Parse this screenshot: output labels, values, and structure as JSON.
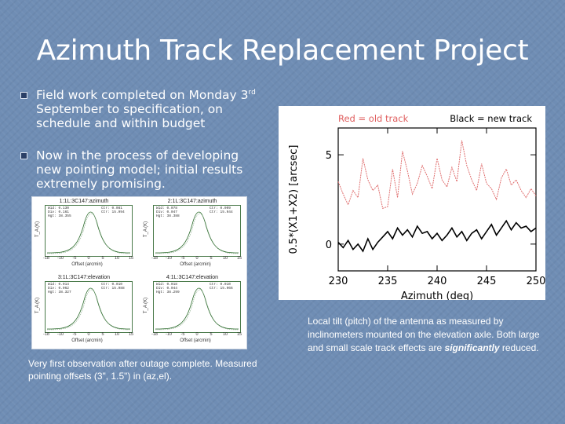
{
  "slide": {
    "title": "Azimuth Track Replacement Project"
  },
  "bullets": [
    {
      "pre": "Field work completed on Monday 3",
      "sup": "rd",
      "post": " September to specification, on schedule and within budget"
    },
    {
      "pre": "Now in the process of developing new pointing model; initial results extremely promising.",
      "sup": "",
      "post": ""
    }
  ],
  "panels": [
    {
      "header": "1:1L:3C147:azimuth",
      "stat_left": "Wid: 0.130\nDiv: 0.161\nHgt: 38.355",
      "stat_right": "Ctr: 0.081\nCtr: 15.994",
      "xlabel": "Offset (arcmin)",
      "ylabel": "T_A (K)"
    },
    {
      "header": "2:1L:3C147:azimuth",
      "stat_left": "Wid: 0.078\nDiv: 0.047\nHgt: 38.388",
      "stat_right": "Ctr: 0.009\nCtr: 15.944",
      "xlabel": "Offset (arcmin)",
      "ylabel": "T_A (K)"
    },
    {
      "header": "3:1L:3C147:elevation",
      "stat_left": "Wid: 0.014\nDiv: 0.062\nHgt: 38.327",
      "stat_right": "Ctr: 0.010\nCtr: 15.988",
      "xlabel": "Offset (arcmin)",
      "ylabel": "T_A (K)"
    },
    {
      "header": "4:1L:3C147:elevation",
      "stat_left": "Wid: 0.018\nDiv: 0.044\nHgt: 38.299",
      "stat_right": "Ctr: 0.010\nCtr: 15.966",
      "xlabel": "Offset (arcmin)",
      "ylabel": "T_A (K)"
    }
  ],
  "panel_ticks": [
    "-18",
    "-10",
    "-5",
    "0",
    "5",
    "10",
    "15"
  ],
  "caption_left": "Very first observation after outage complete. Measured pointing offsets (3\", 1.5\") in (az,el).",
  "caption_right": {
    "pre": "Local tilt (pitch) of the antenna as measured by inclinometers mounted on the elevation axle. Both large and small scale track effects are ",
    "emph": "significantly",
    "post": " reduced."
  },
  "chart_data": {
    "type": "line",
    "legend": {
      "red": "Red = old track",
      "black": "Black = new track"
    },
    "xlabel": "Azimuth (deg)",
    "ylabel": "0.5*(X1+X2) [arcsec]",
    "xlim": [
      230,
      250
    ],
    "ylim": [
      -1.5,
      6.5
    ],
    "xticks": [
      230,
      235,
      240,
      245,
      250
    ],
    "yticks": [
      0,
      5
    ],
    "series": [
      {
        "name": "old track",
        "color": "#e07070",
        "x": [
          230,
          230.5,
          231,
          231.5,
          232,
          232.5,
          233,
          233.5,
          234,
          234.5,
          235,
          235.5,
          236,
          236.5,
          237,
          237.5,
          238,
          238.5,
          239,
          239.5,
          240,
          240.5,
          241,
          241.5,
          242,
          242.5,
          243,
          243.5,
          244,
          244.5,
          245,
          245.5,
          246,
          246.5,
          247,
          247.5,
          248,
          248.5,
          249,
          249.5,
          250
        ],
        "y": [
          3.5,
          2.8,
          2.2,
          3.0,
          2.6,
          4.8,
          3.6,
          3.0,
          3.3,
          2.0,
          2.1,
          4.2,
          2.6,
          5.2,
          4.1,
          2.8,
          3.4,
          4.4,
          3.8,
          3.1,
          4.8,
          3.6,
          3.2,
          4.3,
          3.5,
          5.8,
          4.4,
          3.6,
          3.0,
          4.5,
          3.4,
          3.1,
          2.5,
          3.7,
          4.2,
          3.3,
          3.6,
          3.0,
          2.6,
          3.1,
          2.7
        ]
      },
      {
        "name": "new track",
        "color": "#000000",
        "x": [
          230,
          230.5,
          231,
          231.5,
          232,
          232.5,
          233,
          233.5,
          234,
          234.5,
          235,
          235.5,
          236,
          236.5,
          237,
          237.5,
          238,
          238.5,
          239,
          239.5,
          240,
          240.5,
          241,
          241.5,
          242,
          242.5,
          243,
          243.5,
          244,
          244.5,
          245,
          245.5,
          246,
          246.5,
          247,
          247.5,
          248,
          248.5,
          249,
          249.5,
          250
        ],
        "y": [
          0.1,
          -0.2,
          0.2,
          -0.3,
          0.0,
          -0.4,
          0.3,
          -0.3,
          0.1,
          0.4,
          0.7,
          0.3,
          0.9,
          0.5,
          0.8,
          0.4,
          1.0,
          0.6,
          0.7,
          0.3,
          0.6,
          0.2,
          0.5,
          0.9,
          0.4,
          0.7,
          0.2,
          0.6,
          0.8,
          0.3,
          0.7,
          1.1,
          0.5,
          0.9,
          1.3,
          0.8,
          1.2,
          0.9,
          1.0,
          0.7,
          0.9
        ]
      }
    ]
  }
}
